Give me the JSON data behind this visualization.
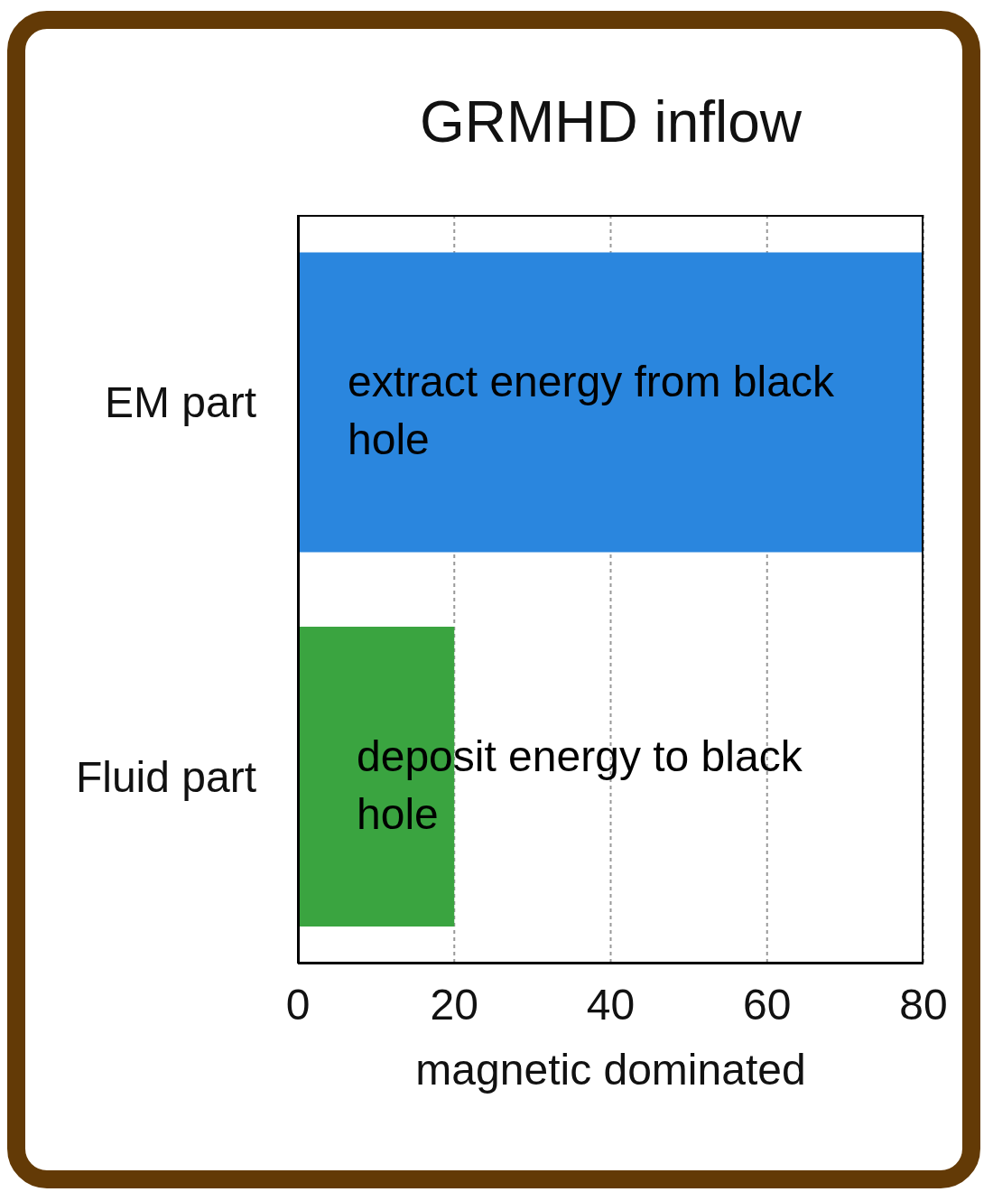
{
  "chart_data": {
    "type": "bar",
    "orientation": "horizontal",
    "title": "GRMHD inflow",
    "xlabel": "magnetic dominated",
    "categories": [
      "EM part",
      "Fluid part"
    ],
    "values": [
      80,
      20
    ],
    "colors": [
      "#2a86de",
      "#3aa440"
    ],
    "xlim": [
      0,
      80
    ],
    "xticks": [
      0,
      20,
      40,
      60,
      80
    ],
    "grid": "x",
    "annotations": [
      "extract energy from black hole",
      "deposit energy to black hole"
    ]
  }
}
